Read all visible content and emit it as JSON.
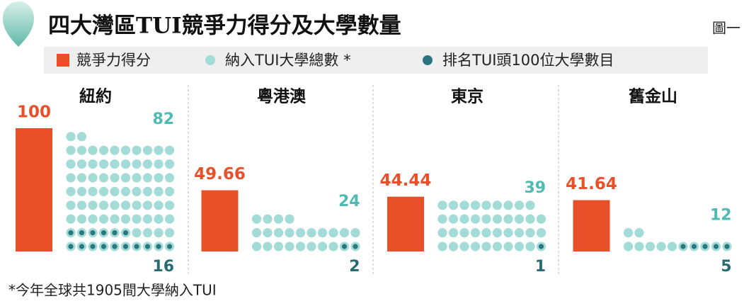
{
  "chart_data": {
    "type": "dot-bar",
    "title": "四大灣區TUI競爭力得分及大學數量",
    "figure_label": "圖一",
    "categories": [
      "紐約",
      "粵港澳",
      "東京",
      "舊金山"
    ],
    "series": [
      {
        "name": "競爭力得分",
        "color": "#e8502a",
        "values": [
          100,
          49.66,
          44.44,
          41.64
        ]
      },
      {
        "name": "納入TUI大學總數 *",
        "color": "#a3dcd7",
        "label_color": "#4fbab2",
        "values": [
          82,
          24,
          39,
          12
        ]
      },
      {
        "name": "排名TUI頭100位大學數目",
        "color": "#2a7780",
        "label_color": "#2a6a72",
        "values": [
          16,
          2,
          1,
          5
        ]
      }
    ],
    "footnote": "*今年全球共1905間大學納入TUI"
  }
}
